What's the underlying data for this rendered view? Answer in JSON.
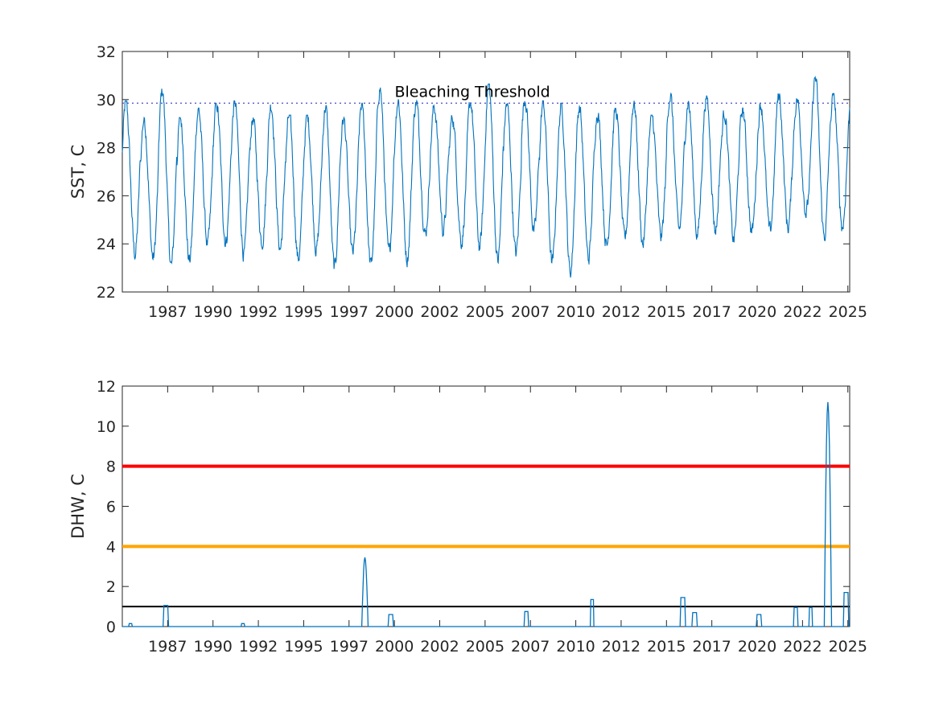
{
  "colors": {
    "sst_line": "#0072BD",
    "dhw_line": "#0072BD",
    "threshold_line": "#4A4AC8",
    "alert_level_2": "#FF0000",
    "alert_level_1": "#FFA500",
    "watch_level": "#000000",
    "axis": "#262626"
  },
  "chart_data": [
    {
      "type": "line",
      "ylabel": "SST, C",
      "xlabel": "",
      "xlim": [
        1985.0,
        2025.1
      ],
      "ylim": [
        22,
        32
      ],
      "y_ticks": [
        22,
        24,
        26,
        28,
        30,
        32
      ],
      "x_tick_labels": [
        "1987",
        "1990",
        "1992",
        "1995",
        "1997",
        "2000",
        "2002",
        "2005",
        "2007",
        "2010",
        "2012",
        "2015",
        "2017",
        "2020",
        "2022",
        "2025"
      ],
      "x_tick_positions": [
        1987.5,
        1990.0,
        1992.5,
        1995.0,
        1997.5,
        2000.0,
        2002.5,
        2005.0,
        2007.5,
        2010.0,
        2012.5,
        2015.0,
        2017.5,
        2020.0,
        2022.5,
        2025.0
      ],
      "grid": false,
      "series": [
        {
          "style": "seasonal daily series",
          "yearly_peaks": [
            29.9,
            29.2,
            30.4,
            29.2,
            29.6,
            29.8,
            29.9,
            29.2,
            29.8,
            29.3,
            29.3,
            29.7,
            29.2,
            29.8,
            30.5,
            30.0,
            29.9,
            29.7,
            29.3,
            29.9,
            30.6,
            29.8,
            30.1,
            29.9,
            29.8,
            29.7,
            29.5,
            29.6,
            29.9,
            29.3,
            30.2,
            29.9,
            30.1,
            29.5,
            29.6,
            29.8,
            30.2,
            30.0,
            30.9,
            30.2
          ],
          "yearly_troughs": [
            23.6,
            23.4,
            23.1,
            23.3,
            24.0,
            24.1,
            23.6,
            24.1,
            23.8,
            23.4,
            23.8,
            23.0,
            23.6,
            23.1,
            23.6,
            23.4,
            24.4,
            24.6,
            24.1,
            23.9,
            23.3,
            23.6,
            24.5,
            23.2,
            22.8,
            23.4,
            23.9,
            24.2,
            24.0,
            24.3,
            24.6,
            24.4,
            24.6,
            24.2,
            24.5,
            24.5,
            24.7,
            25.3,
            24.3,
            24.7
          ]
        },
        {
          "style": "dotted",
          "constant": 29.85
        }
      ],
      "annotations": [
        {
          "text": "Bleaching Threshold",
          "x": 2004.3,
          "y": 30.25
        }
      ]
    },
    {
      "type": "line",
      "ylabel": "DHW, C",
      "xlabel": "",
      "xlim": [
        1985.0,
        2025.1
      ],
      "ylim": [
        0,
        12
      ],
      "y_ticks": [
        0,
        2,
        4,
        6,
        8,
        10,
        12
      ],
      "x_tick_labels": [
        "1987",
        "1990",
        "1992",
        "1995",
        "1997",
        "2000",
        "2002",
        "2005",
        "2007",
        "2010",
        "2012",
        "2015",
        "2017",
        "2020",
        "2022",
        "2025"
      ],
      "x_tick_positions": [
        1987.5,
        1990.0,
        1992.5,
        1995.0,
        1997.5,
        2000.0,
        2002.5,
        2005.0,
        2007.5,
        2010.0,
        2012.5,
        2015.0,
        2017.5,
        2020.0,
        2022.5,
        2025.0
      ],
      "grid": false,
      "series": [
        {
          "style": "stepped",
          "events": [
            {
              "start": 1985.35,
              "end": 1985.55,
              "peak": 0.15
            },
            {
              "start": 1987.25,
              "end": 1987.55,
              "peak": 1.05
            },
            {
              "start": 1991.55,
              "end": 1991.75,
              "peak": 0.15
            },
            {
              "start": 1998.2,
              "end": 1998.55,
              "peak": 3.45
            },
            {
              "start": 1999.65,
              "end": 1999.95,
              "peak": 0.6
            },
            {
              "start": 2007.15,
              "end": 2007.4,
              "peak": 0.75
            },
            {
              "start": 2010.8,
              "end": 2011.0,
              "peak": 1.35
            },
            {
              "start": 2015.75,
              "end": 2016.05,
              "peak": 1.45
            },
            {
              "start": 2016.4,
              "end": 2016.7,
              "peak": 0.7
            },
            {
              "start": 2019.95,
              "end": 2020.25,
              "peak": 0.6
            },
            {
              "start": 2022.0,
              "end": 2022.25,
              "peak": 0.95
            },
            {
              "start": 2022.85,
              "end": 2023.05,
              "peak": 0.95
            },
            {
              "start": 2023.7,
              "end": 2024.1,
              "peak": 11.2
            },
            {
              "start": 2024.75,
              "end": 2025.05,
              "peak": 1.7
            }
          ]
        },
        {
          "style": "solid",
          "constant": 8
        },
        {
          "style": "solid",
          "constant": 4
        },
        {
          "style": "solid",
          "constant": 1
        }
      ],
      "annotations": []
    }
  ]
}
